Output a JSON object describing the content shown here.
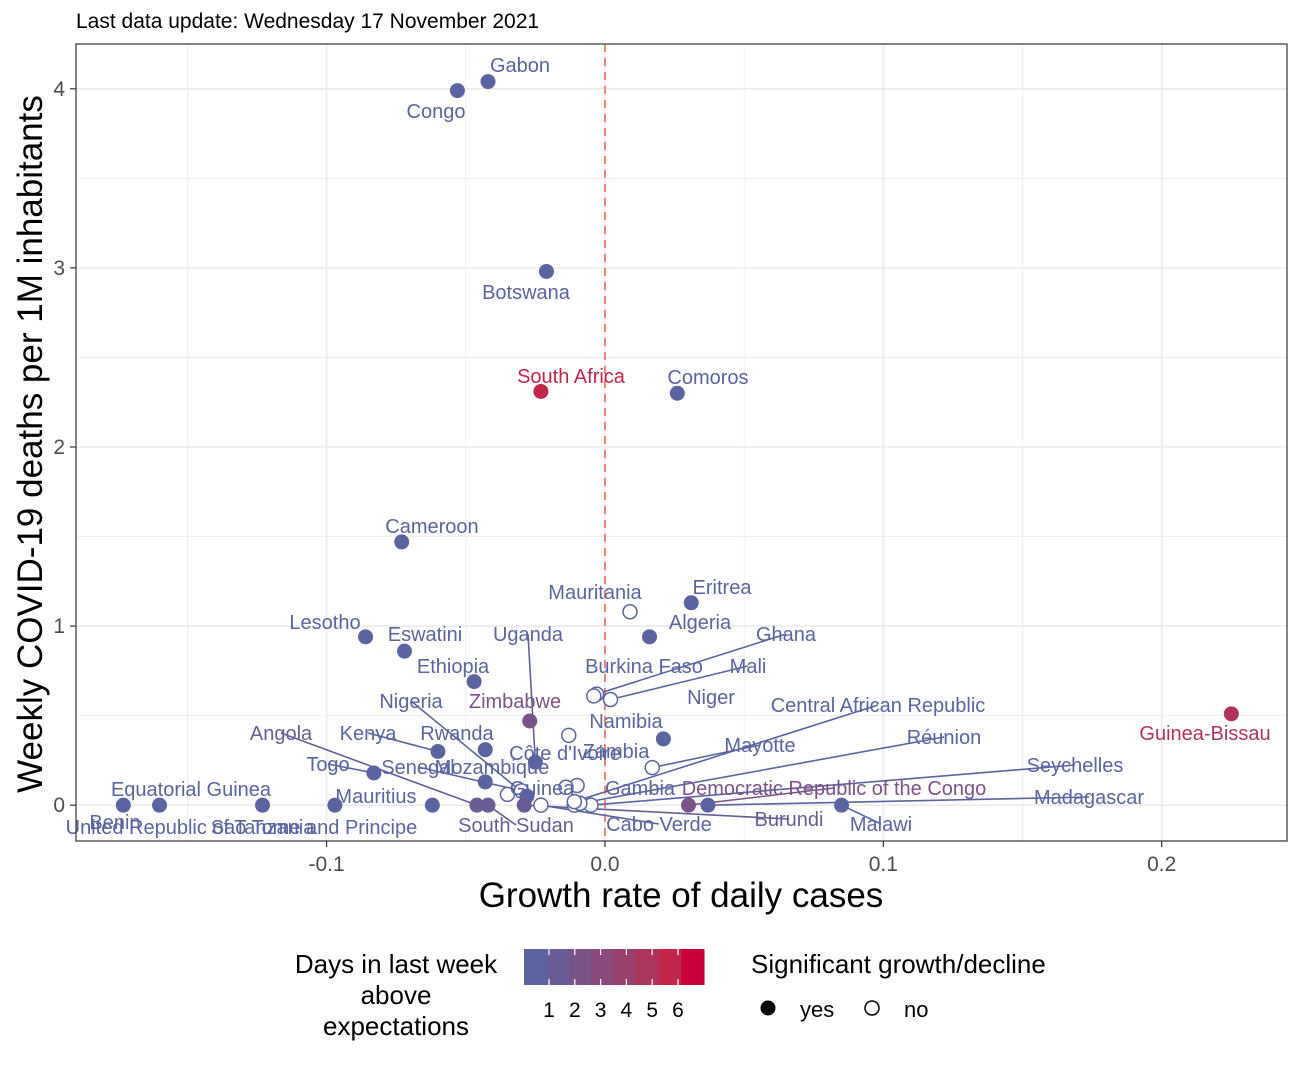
{
  "subtitle": "Last data update: Wednesday 17 November 2021",
  "chart_data": {
    "type": "scatter",
    "xlabel": "Growth rate of daily cases",
    "ylabel": "Weekly COVID-19 deaths per 1M inhabitants",
    "xlim": [
      -0.19,
      0.245
    ],
    "ylim": [
      -0.2,
      4.25
    ],
    "x_ticks": [
      {
        "value": -0.1,
        "label": "-0.1"
      },
      {
        "value": 0.0,
        "label": "0.0"
      },
      {
        "value": 0.1,
        "label": "0.1"
      },
      {
        "value": 0.2,
        "label": "0.2"
      }
    ],
    "y_ticks": [
      {
        "value": 0,
        "label": "0"
      },
      {
        "value": 1,
        "label": "1"
      },
      {
        "value": 2,
        "label": "2"
      },
      {
        "value": 3,
        "label": "3"
      },
      {
        "value": 4,
        "label": "4"
      }
    ],
    "grid": true,
    "reference_line": {
      "x": 0,
      "style": "dashed",
      "color": "#f8766d"
    },
    "color_scale": {
      "title": "Days in last week above expectations",
      "title_lines": [
        "Days in last week",
        "above",
        "expectations"
      ],
      "labels": [
        "1",
        "2",
        "3",
        "4",
        "5",
        "6"
      ],
      "colors": [
        "#5b64a0",
        "#6a5c94",
        "#7a5388",
        "#8a4a7b",
        "#9b406d",
        "#ad355c",
        "#c1264a",
        "#c9003a"
      ]
    },
    "shape_legend": {
      "title": "Significant growth/decline",
      "entries": [
        {
          "label": "yes",
          "filled": true
        },
        {
          "label": "no",
          "filled": false
        }
      ]
    },
    "points": [
      {
        "name": "Gabon",
        "x": -0.042,
        "y": 4.04,
        "days": 0,
        "significant": true
      },
      {
        "name": "Congo",
        "x": -0.053,
        "y": 3.99,
        "days": 0,
        "significant": true
      },
      {
        "name": "Botswana",
        "x": -0.021,
        "y": 2.98,
        "days": 0,
        "significant": true
      },
      {
        "name": "South Africa",
        "x": -0.023,
        "y": 2.31,
        "days": 6,
        "significant": true
      },
      {
        "name": "Comoros",
        "x": 0.026,
        "y": 2.3,
        "days": 0,
        "significant": true
      },
      {
        "name": "Cameroon",
        "x": -0.073,
        "y": 1.47,
        "days": 0,
        "significant": true
      },
      {
        "name": "Eritrea",
        "x": 0.031,
        "y": 1.13,
        "days": 0,
        "significant": true
      },
      {
        "name": "Mauritania",
        "x": 0.009,
        "y": 1.08,
        "days": 0,
        "significant": false
      },
      {
        "name": "Lesotho",
        "x": -0.086,
        "y": 0.94,
        "days": 0,
        "significant": true
      },
      {
        "name": "Algeria",
        "x": 0.016,
        "y": 0.94,
        "days": 0,
        "significant": true
      },
      {
        "name": "Eswatini",
        "x": -0.072,
        "y": 0.86,
        "days": 0,
        "significant": true
      },
      {
        "name": "Ethiopia",
        "x": -0.047,
        "y": 0.69,
        "days": 0,
        "significant": true
      },
      {
        "name": "Ghana",
        "x": -0.003,
        "y": 0.62,
        "days": 0,
        "significant": false
      },
      {
        "name": "Burkina Faso",
        "x": -0.004,
        "y": 0.61,
        "days": 0,
        "significant": false
      },
      {
        "name": "Mali",
        "x": 0.002,
        "y": 0.59,
        "days": 0,
        "significant": false
      },
      {
        "name": "Guinea-Bissau",
        "x": 0.225,
        "y": 0.51,
        "days": 5,
        "significant": true
      },
      {
        "name": "Zimbabwe",
        "x": -0.027,
        "y": 0.47,
        "days": 2,
        "significant": true
      },
      {
        "name": "Namibia",
        "x": -0.013,
        "y": 0.39,
        "days": 0,
        "significant": false
      },
      {
        "name": "Niger",
        "x": 0.021,
        "y": 0.37,
        "days": 0,
        "significant": true
      },
      {
        "name": "Rwanda",
        "x": -0.043,
        "y": 0.31,
        "days": 0,
        "significant": true
      },
      {
        "name": "Kenya",
        "x": -0.06,
        "y": 0.3,
        "days": 0,
        "significant": true
      },
      {
        "name": "Uganda",
        "x": -0.025,
        "y": 0.24,
        "days": 0,
        "significant": true
      },
      {
        "name": "Mayotte",
        "x": 0.017,
        "y": 0.21,
        "days": 0,
        "significant": false
      },
      {
        "name": "Togo",
        "x": -0.083,
        "y": 0.18,
        "days": 0,
        "significant": true
      },
      {
        "name": "Mozambique",
        "x": -0.043,
        "y": 0.13,
        "days": 0,
        "significant": true
      },
      {
        "name": "Zambia",
        "x": -0.01,
        "y": 0.11,
        "days": 0,
        "significant": false
      },
      {
        "name": "Côte d'Ivoire",
        "x": -0.014,
        "y": 0.1,
        "days": 0,
        "significant": false
      },
      {
        "name": "Senegal",
        "x": -0.03,
        "y": 0.08,
        "days": 0,
        "significant": false
      },
      {
        "name": "Guinea",
        "x": -0.035,
        "y": 0.06,
        "days": 0,
        "significant": false
      },
      {
        "name": "Nigeria",
        "x": -0.028,
        "y": 0.05,
        "days": 0,
        "significant": true
      },
      {
        "name": "Benin",
        "x": -0.173,
        "y": 0.0,
        "days": 0,
        "significant": true
      },
      {
        "name": "United Republic of Tanzania",
        "x": -0.16,
        "y": 0.0,
        "days": 0,
        "significant": true
      },
      {
        "name": "Equatorial Guinea",
        "x": -0.123,
        "y": 0.0,
        "days": 0,
        "significant": true
      },
      {
        "name": "Mauritius",
        "x": -0.097,
        "y": 0.0,
        "days": 0,
        "significant": true
      },
      {
        "name": "Sao Tome and Principe",
        "x": -0.062,
        "y": 0.0,
        "days": 0,
        "significant": true
      },
      {
        "name": "Angola",
        "x": -0.046,
        "y": 0.0,
        "days": 1,
        "significant": true
      },
      {
        "name": "South Sudan",
        "x": -0.042,
        "y": 0.0,
        "days": 1,
        "significant": true
      },
      {
        "name": "Burundi",
        "x": -0.029,
        "y": 0.0,
        "days": 1,
        "significant": true
      },
      {
        "name": "Cabo Verde",
        "x": -0.023,
        "y": 0.0,
        "days": 0,
        "significant": false
      },
      {
        "name": "Gambia",
        "x": -0.011,
        "y": 0.0,
        "days": 0,
        "significant": false
      },
      {
        "name": "Seychelles",
        "x": -0.005,
        "y": 0.0,
        "days": 0,
        "significant": false
      },
      {
        "name": "Réunion",
        "x": -0.009,
        "y": 0.01,
        "days": 0,
        "significant": false
      },
      {
        "name": "Central African Republic",
        "x": -0.011,
        "y": 0.02,
        "days": 0,
        "significant": false
      },
      {
        "name": "Democratic Republic of the Congo",
        "x": 0.03,
        "y": 0.0,
        "days": 2,
        "significant": true
      },
      {
        "name": "Madagascar",
        "x": 0.037,
        "y": 0.0,
        "days": 0,
        "significant": true
      },
      {
        "name": "Malawi",
        "x": 0.085,
        "y": 0.0,
        "days": 0,
        "significant": true
      }
    ]
  }
}
